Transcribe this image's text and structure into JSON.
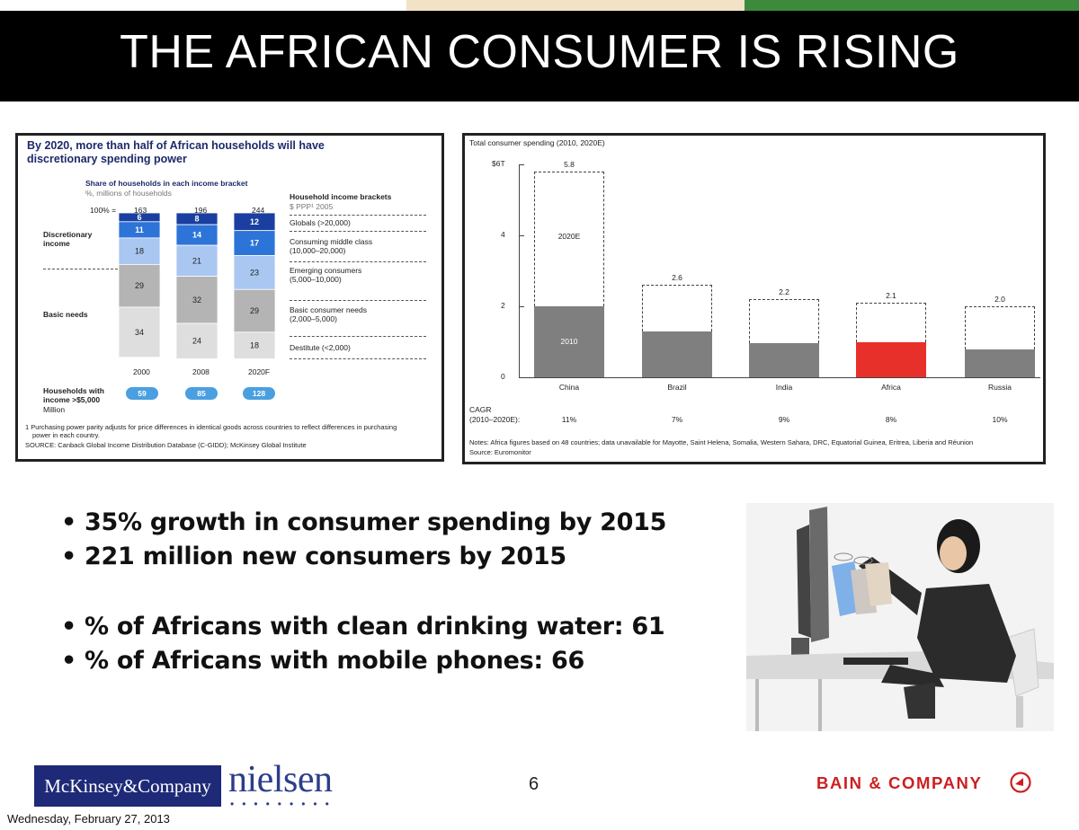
{
  "slide": {
    "title": "THE AFRICAN CONSUMER IS RISING",
    "page_number": "6",
    "date": "Wednesday, February 27, 2013"
  },
  "colors": {
    "title_bar": "#000000",
    "strip_light": "#f3e3c6",
    "strip_green": "#3d8a3d",
    "africa_bar": "#e8302a",
    "bar_grey": "#7f7f7f",
    "oval_blue": "#4a9fe0"
  },
  "left_chart": {
    "heading_line1": "By 2020, more than half of African households will have",
    "heading_line2": "discretionary spending power",
    "subtitle": "Share of households in each income bracket",
    "units": "%, millions of households",
    "total_label": "100% =",
    "totals": [
      "163",
      "196",
      "244"
    ],
    "legend_title": "Household income brackets",
    "legend_sub": "$ PPP¹ 2005",
    "group_discretionary_1": "Discretionary",
    "group_discretionary_2": "income",
    "group_basic": "Basic needs",
    "years": [
      "2000",
      "2008",
      "2020F"
    ],
    "brackets": [
      {
        "label1": "Globals (>20,000)",
        "label2": ""
      },
      {
        "label1": "Consuming middle class",
        "label2": "(10,000–20,000)"
      },
      {
        "label1": "Emerging consumers",
        "label2": "(5,000–10,000)"
      },
      {
        "label1": "Basic consumer needs",
        "label2": "(2,000–5,000)"
      },
      {
        "label1": "Destitute (<2,000)",
        "label2": ""
      }
    ],
    "values": [
      [
        "6",
        "11",
        "18",
        "29",
        "34"
      ],
      [
        "8",
        "14",
        "21",
        "32",
        "24"
      ],
      [
        "12",
        "17",
        "23",
        "29",
        "18"
      ]
    ],
    "households_label1": "Households with",
    "households_label2": "income >$5,000",
    "households_label3": "Million",
    "households": [
      "59",
      "85",
      "128"
    ],
    "footnote1": "1 Purchasing power parity adjusts for price differences in identical goods across countries to reflect differences in purchasing",
    "footnote2": "power in each country.",
    "source": "SOURCE: Canback Global Income Distribution Database (C-GIDD); McKinsey Global Institute"
  },
  "chart_data": {
    "type": "bar",
    "title": "Total consumer spending (2010, 2020E)",
    "categories": [
      "China",
      "Brazil",
      "India",
      "Africa",
      "Russia"
    ],
    "series": [
      {
        "name": "2010",
        "values": [
          2.0,
          1.3,
          0.95,
          0.98,
          0.78
        ]
      },
      {
        "name": "2020E",
        "values": [
          5.8,
          2.6,
          2.2,
          2.1,
          2.0
        ]
      }
    ],
    "ytick_labels": [
      "0",
      "2",
      "4",
      "$6T"
    ],
    "yticks": [
      0,
      2,
      4,
      6
    ],
    "ylim": [
      0,
      6
    ],
    "value_labels": [
      "5.8",
      "2.6",
      "2.2",
      "2.1",
      "2.0"
    ],
    "inbar_label_2010": "2010",
    "inbar_label_2020": "2020E",
    "cagr_label1": "CAGR",
    "cagr_label2": "(2010–2020E):",
    "cagr": [
      "11%",
      "7%",
      "9%",
      "8%",
      "10%"
    ],
    "notes": "Notes: Africa figures based on 48 countries; data unavailable for Mayotte, Saint Helena, Somalia, Western Sahara, DRC, Equatorial Guinea, Eritrea, Liberia and Réunion",
    "source": "Source: Euromonitor"
  },
  "bullets": [
    "• 35% growth in consumer spending by 2015",
    "• 221 million new consumers by 2015",
    "• % of Africans with clean drinking water: 61",
    "• % of Africans with mobile phones: 66"
  ],
  "logos": {
    "mckinsey": "McKinsey&Company",
    "nielsen": "nielsen",
    "nielsen_dots": "•••••••••",
    "bain": "BAIN & COMPANY"
  }
}
